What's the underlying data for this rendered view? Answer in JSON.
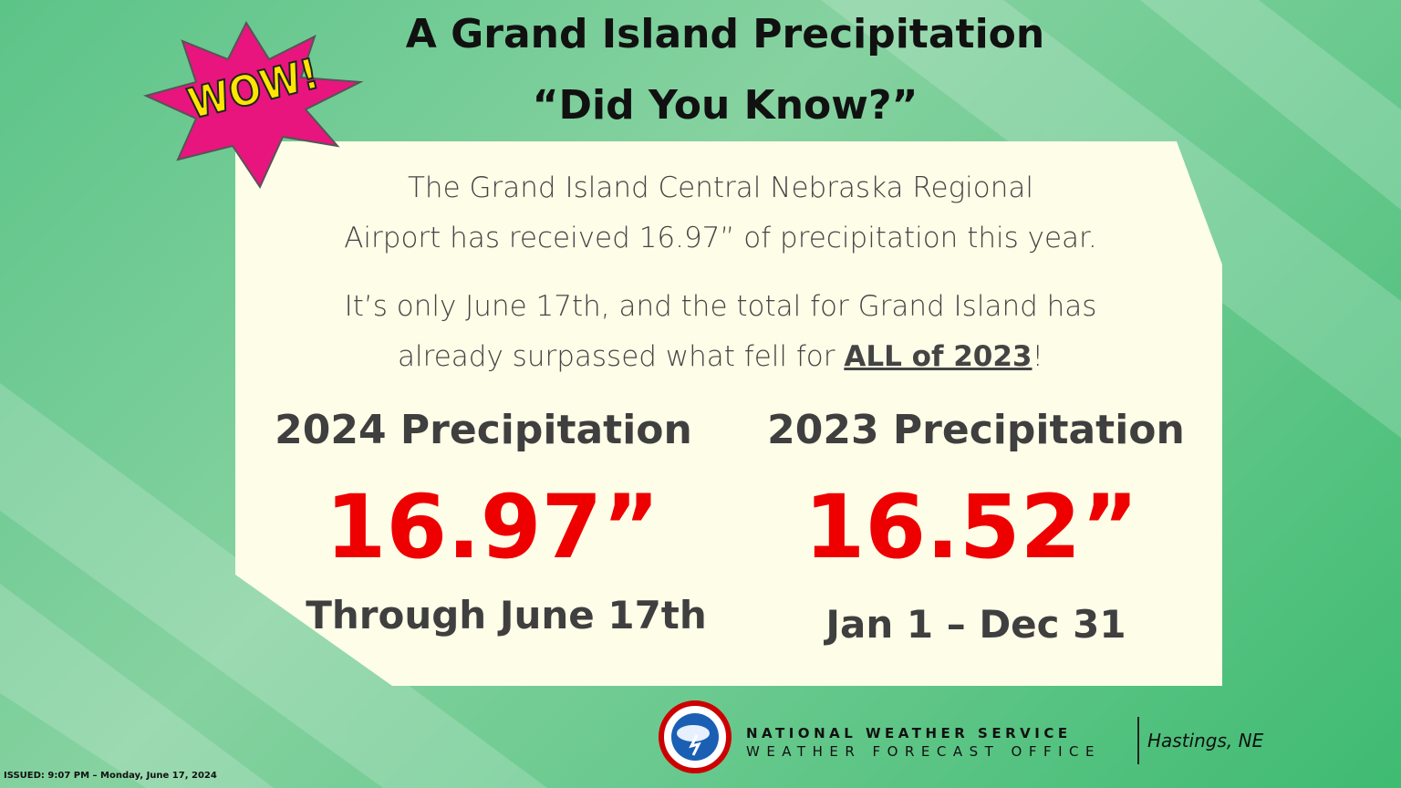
{
  "header": {
    "title_lines": [
      "A Grand Island Precipitation",
      "“Did You Know?”"
    ],
    "badge": "WOW!"
  },
  "intro": {
    "lines": [
      "The Grand Island Central Nebraska Regional",
      "Airport has received 16.97” of precipitation this year."
    ]
  },
  "note": {
    "line1": "It’s only June 17th, and the total for Grand Island has",
    "line2_start": "already surpassed what fell for ",
    "line2_emphasis": "ALL of 2023",
    "line2_end": "!"
  },
  "columns": [
    {
      "heading": "2024 Precipitation",
      "amount": "16.97”",
      "period": "Through June 17th"
    },
    {
      "heading": "2023 Precipitation",
      "amount": "16.52”",
      "period": "Jan 1 – Dec 31"
    }
  ],
  "footer": {
    "agency": "NATIONAL WEATHER SERVICE",
    "office": "WEATHER FORECAST OFFICE",
    "location": "Hastings, NE",
    "issued": "ISSUED: 9:07 PM – Monday, June 17, 2024"
  }
}
